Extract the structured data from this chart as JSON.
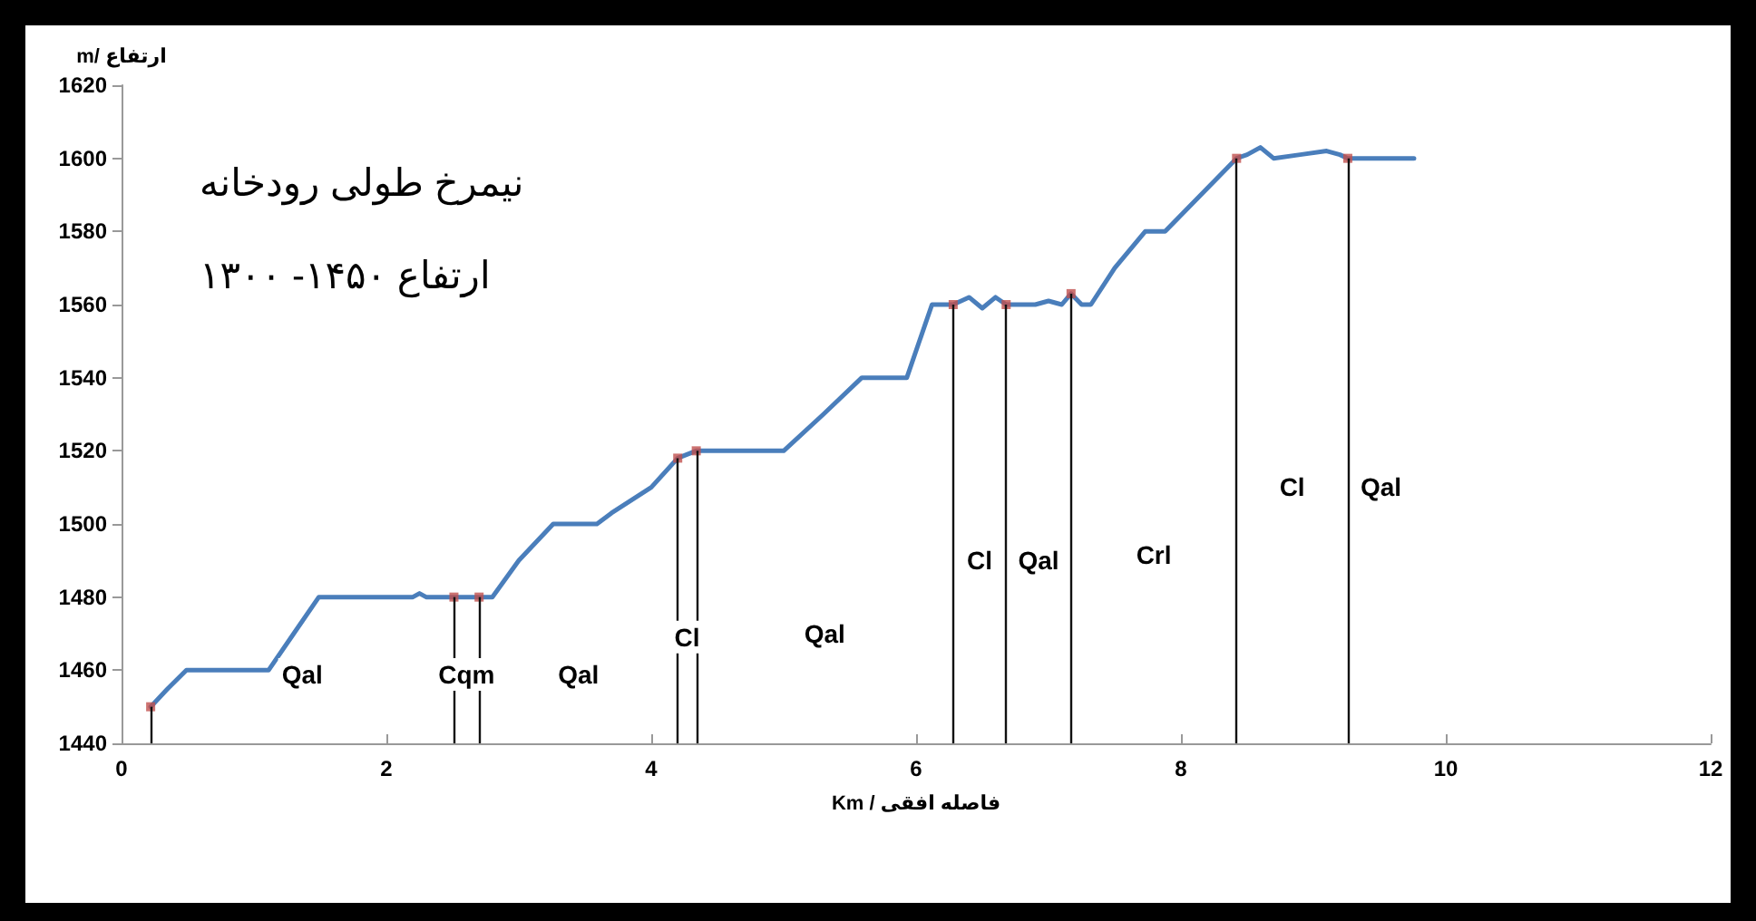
{
  "chart_data": {
    "type": "line",
    "title": "نیمرخ طولی رودخانه",
    "subtitle": "ارتفاع ۱۴۵۰- ۱۳۰۰",
    "xlabel": "Km / فاصله افقی",
    "ylabel": "m/ ارتفاع",
    "xlim": [
      0,
      12
    ],
    "xticks": [
      0,
      2,
      4,
      6,
      8,
      10,
      12
    ],
    "ylim": [
      1440,
      1620
    ],
    "yticks": [
      1440,
      1460,
      1480,
      1500,
      1520,
      1540,
      1560,
      1580,
      1600,
      1620
    ],
    "grid": false,
    "series": [
      {
        "type": "line",
        "color": "#4a7ebb",
        "marker": "none",
        "x": [
          0.22,
          0.35,
          0.49,
          1.11,
          1.3,
          1.49,
          2.2,
          2.25,
          2.3,
          2.51,
          2.7,
          2.8,
          3.0,
          3.26,
          3.59,
          3.7,
          4.0,
          4.2,
          4.34,
          5.0,
          5.3,
          5.59,
          5.93,
          6.12,
          6.28,
          6.4,
          6.5,
          6.6,
          6.68,
          6.9,
          7.0,
          7.1,
          7.17,
          7.25,
          7.32,
          7.5,
          7.73,
          7.88,
          8.15,
          8.42,
          8.5,
          8.6,
          8.7,
          8.9,
          9.1,
          9.2,
          9.26,
          9.4,
          9.76
        ],
        "values": [
          1450,
          1455,
          1460,
          1460,
          1470,
          1480,
          1480,
          1481,
          1480,
          1480,
          1480,
          1480,
          1490,
          1500,
          1500,
          1503,
          1510,
          1518,
          1520,
          1520,
          1530,
          1540,
          1540,
          1560,
          1560,
          1562,
          1559,
          1562,
          1560,
          1560,
          1561,
          1560,
          1563,
          1560,
          1560,
          1570,
          1580,
          1580,
          1590,
          1600,
          1601,
          1603,
          1600,
          1601,
          1602,
          1601,
          1600,
          1600,
          1600
        ]
      },
      {
        "type": "lollipop",
        "color": "#c0504d",
        "marker": "square",
        "x": [
          0.22,
          2.51,
          2.7,
          4.2,
          4.34,
          6.28,
          6.68,
          7.17,
          8.42,
          9.26
        ],
        "values": [
          1450,
          1480,
          1480,
          1518,
          1520,
          1560,
          1560,
          1563,
          1600,
          1600
        ]
      }
    ],
    "annotations": [
      "Qal",
      "Cqm",
      "Qal",
      "Cl",
      "Qal",
      "Cl",
      "Qal",
      "Crl",
      "Cl",
      "Qal"
    ]
  }
}
